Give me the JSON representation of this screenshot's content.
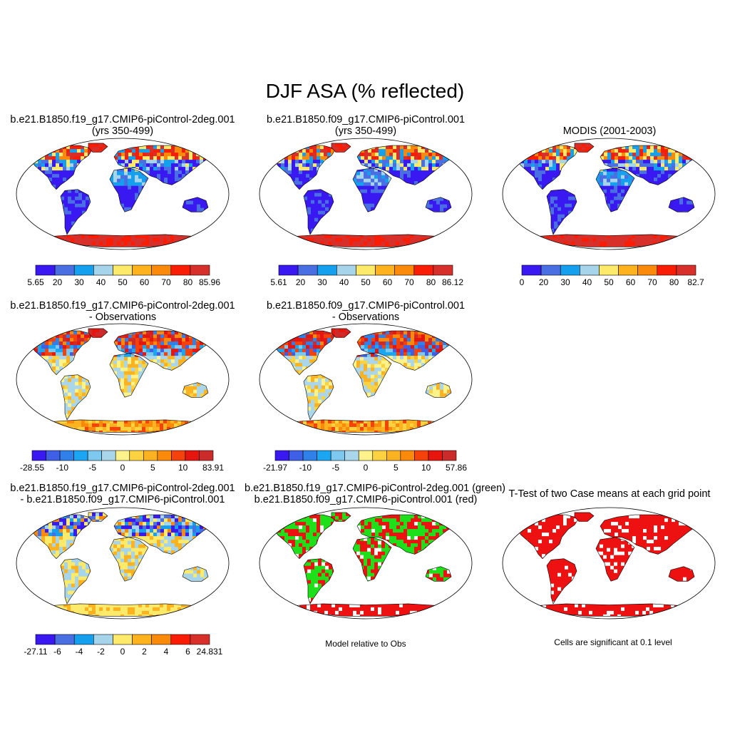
{
  "title": "DJF ASA (% reflected)",
  "panels": [
    {
      "id": "p1",
      "title1": "b.e21.B1850.f19_g17.CMIP6-piControl-2deg.001",
      "title2": "(yrs 350-499)",
      "kind": "abs",
      "colorbar": {
        "labels": [
          "5.65",
          "20",
          "30",
          "40",
          "50",
          "60",
          "70",
          "80",
          "85.96"
        ]
      }
    },
    {
      "id": "p2",
      "title1": "b.e21.B1850.f09_g17.CMIP6-piControl.001",
      "title2": "(yrs 350-499)",
      "kind": "abs",
      "colorbar": {
        "labels": [
          "5.61",
          "20",
          "30",
          "40",
          "50",
          "60",
          "70",
          "80",
          "86.12"
        ]
      }
    },
    {
      "id": "p3",
      "title1": "MODIS (2001-2003)",
      "title2": "",
      "kind": "abs",
      "colorbar": {
        "labels": [
          "0",
          "20",
          "30",
          "40",
          "50",
          "60",
          "70",
          "80",
          "82.7"
        ]
      }
    },
    {
      "id": "p4",
      "title1": "b.e21.B1850.f19_g17.CMIP6-piControl-2deg.001",
      "title2": "- Observations",
      "kind": "diff",
      "colorbar": {
        "labels": [
          "-28.55",
          "-10",
          "-5",
          "0",
          "5",
          "10",
          "83.91"
        ]
      }
    },
    {
      "id": "p5",
      "title1": "b.e21.B1850.f09_g17.CMIP6-piControl.001",
      "title2": "- Observations",
      "kind": "diff",
      "colorbar": {
        "labels": [
          "-21.97",
          "-10",
          "-5",
          "0",
          "5",
          "10",
          "57.86"
        ]
      }
    },
    {
      "id": "p6",
      "title1": "b.e21.B1850.f19_g17.CMIP6-piControl-2deg.001",
      "title2": "- b.e21.B1850.f09_g17.CMIP6-piControl.001",
      "kind": "diff2",
      "colorbar": {
        "labels": [
          "-27.11",
          "-6",
          "-4",
          "-2",
          "0",
          "2",
          "4",
          "6",
          "24.831"
        ]
      }
    },
    {
      "id": "p7",
      "title1": "b.e21.B1850.f19_g17.CMIP6-piControl-2deg.001 (green)",
      "title2": "b.e21.B1850.f09_g17.CMIP6-piControl.001 (red)",
      "kind": "rel",
      "caption": "Model relative to Obs"
    },
    {
      "id": "p8",
      "title1": "T-Test of two Case means at each grid point",
      "title2": "",
      "kind": "ttest",
      "caption": "Cells are significant at 0.1 level"
    }
  ],
  "colors": {
    "abs": [
      "#3a18f2",
      "#4a6fe3",
      "#14a0ee",
      "#a6d4ea",
      "#fde96a",
      "#fdb21e",
      "#fb8a0a",
      "#fa1d05",
      "#d7302b"
    ],
    "diff": [
      "#3a18f2",
      "#3f5fe6",
      "#2f80e8",
      "#1aa6f2",
      "#7cc8ee",
      "#aad6ec",
      "#fef28a",
      "#fdd240",
      "#fdb221",
      "#fb8a0a",
      "#f5420a",
      "#e6150d",
      "#cc2b2b"
    ],
    "diff2": [
      "#3a18f2",
      "#4a6fe3",
      "#14a0ee",
      "#a6d4ea",
      "#fde96a",
      "#fdb21e",
      "#fb8a0a",
      "#fa1d05",
      "#d7302b"
    ],
    "green": "#1ee01a",
    "red": "#ee1111"
  }
}
